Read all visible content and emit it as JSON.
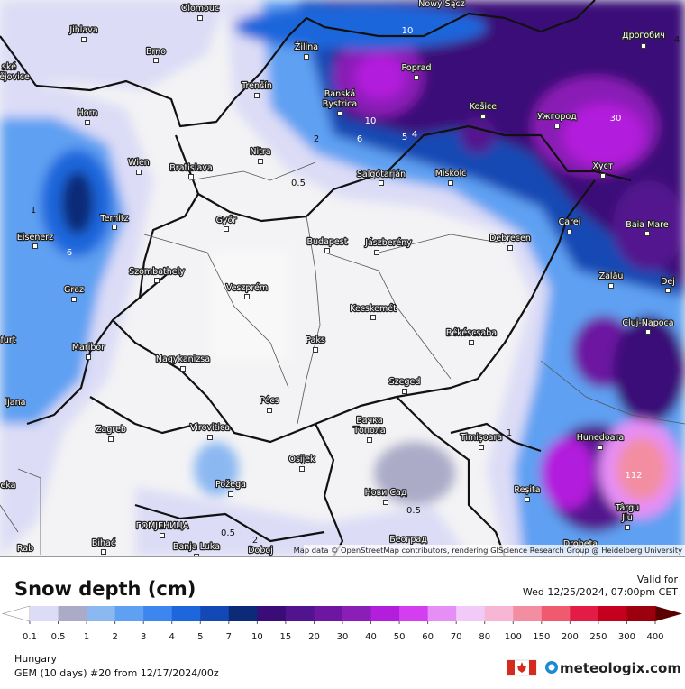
{
  "map": {
    "cities": [
      "Olomouc",
      "Jihlava",
      "Brno",
      "Žilina",
      "Poprad",
      "Nowy Sącz",
      "Дрогобич",
      "Banská",
      "Bystrica",
      "Trenčín",
      "Horn",
      "Košice",
      "Ужгород",
      "Wien",
      "Bratislava",
      "Nitra",
      "Salgótarján",
      "Miskolc",
      "Хуст",
      "Ternitz",
      "Győr",
      "Budapest",
      "Jászberény",
      "Debrecen",
      "Carei",
      "Baia Mare",
      "Eisenerz",
      "Szombathely",
      "Veszprém",
      "Zalău",
      "Dej",
      "Graz",
      "Kecskemét",
      "Cluj-Napoca",
      "Békéscsaba",
      "Paks",
      "Maribor",
      "Nagykanizsa",
      "Szeged",
      "Pécs",
      "Бачка",
      "Топола",
      "Virovitica",
      "Zagreb",
      "Timișoara",
      "Hunedoara",
      "Osijek",
      "Požega",
      "Нови Сад",
      "Reșita",
      "Târgu",
      "Jiu",
      "ГОМЈЕНИЦА",
      "Banja Luka",
      "Bihać",
      "Doboj",
      "Београд",
      "Drobeta",
      "ské",
      "ějovice",
      "furt",
      "ljana",
      "eka",
      "Rab"
    ],
    "contour_labels": [
      "0.5",
      "2",
      "1",
      "6",
      "0.5",
      "0.5",
      "2",
      "112",
      "30",
      "1",
      "10",
      "6",
      "5",
      "4",
      "4",
      "10"
    ],
    "attribution": "Map data © OpenStreetMap contributors, rendering GIScience Research Group @ Heidelberg University"
  },
  "legend": {
    "title": "Snow depth (cm)",
    "valid_label": "Valid for",
    "valid_time": "Wed 12/25/2024, 07:00pm CET",
    "ticks": [
      0.1,
      0.5,
      1,
      2,
      3,
      4,
      5,
      7,
      10,
      15,
      20,
      30,
      40,
      50,
      60,
      70,
      80,
      100,
      150,
      200,
      250,
      300,
      400
    ],
    "colors": [
      "#dcdcf6",
      "#ababc8",
      "#8cb8f2",
      "#5ea0f2",
      "#3d86f0",
      "#1d66dc",
      "#1448b4",
      "#0b2a78",
      "#3a0c78",
      "#52148e",
      "#6c16a2",
      "#8a1eb6",
      "#b21edc",
      "#d23ef0",
      "#e68ef6",
      "#f2caf8",
      "#f6b6d4",
      "#f38ea2",
      "#f05a6e",
      "#e21c44",
      "#c4001e",
      "#9c000c"
    ],
    "under_color": "#ffffff",
    "over_color": "#5a0000"
  },
  "footer": {
    "region": "Hungary",
    "model": "GEM (10 days) #20 from  12/17/2024/00z",
    "brand": "meteologix.com"
  }
}
